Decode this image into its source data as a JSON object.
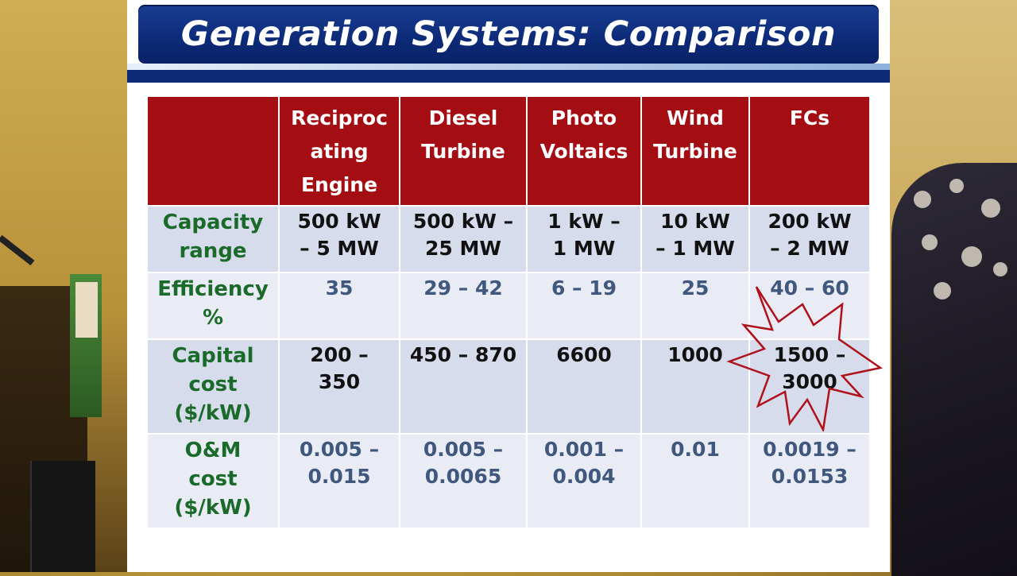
{
  "title": "Generation Systems: Comparison",
  "columns": [
    "Reciproc\nating\nEngine",
    "Diesel\nTurbine",
    "Photo\nVoltaics",
    "Wind\nTurbine",
    "FCs"
  ],
  "rows": [
    {
      "label": "Capacity\nrange",
      "cells": [
        "500 kW\n–  5 MW",
        "500 kW –\n25 MW",
        "1 kW –\n1 MW",
        "10 kW\n– 1 MW",
        "200 kW\n– 2 MW"
      ]
    },
    {
      "label": "Efficiency\n%",
      "cells": [
        "35",
        "29  – 42",
        "6  – 19",
        "25",
        "40  – 60"
      ]
    },
    {
      "label": "Capital\ncost\n($/kW)",
      "cells": [
        "200 –\n350",
        "450 – 870",
        "6600",
        "1000",
        "1500 –\n3000"
      ]
    },
    {
      "label": "O&M\ncost\n($/kW)",
      "cells": [
        "0.005 –\n0.015",
        "0.005 –\n0.0065",
        "0.001 –\n0.004",
        "0.01",
        "0.0019 –\n0.0153"
      ]
    }
  ],
  "colors": {
    "title_band": "#0d2a78",
    "header_bg": "#a40d12",
    "row_label": "#1a6a2a",
    "dark_value": "#111111",
    "blue_value": "#40577e",
    "starburst_outline": "#b0101a"
  },
  "highlight": {
    "shape": "starburst",
    "target": "FCs capital cost"
  }
}
